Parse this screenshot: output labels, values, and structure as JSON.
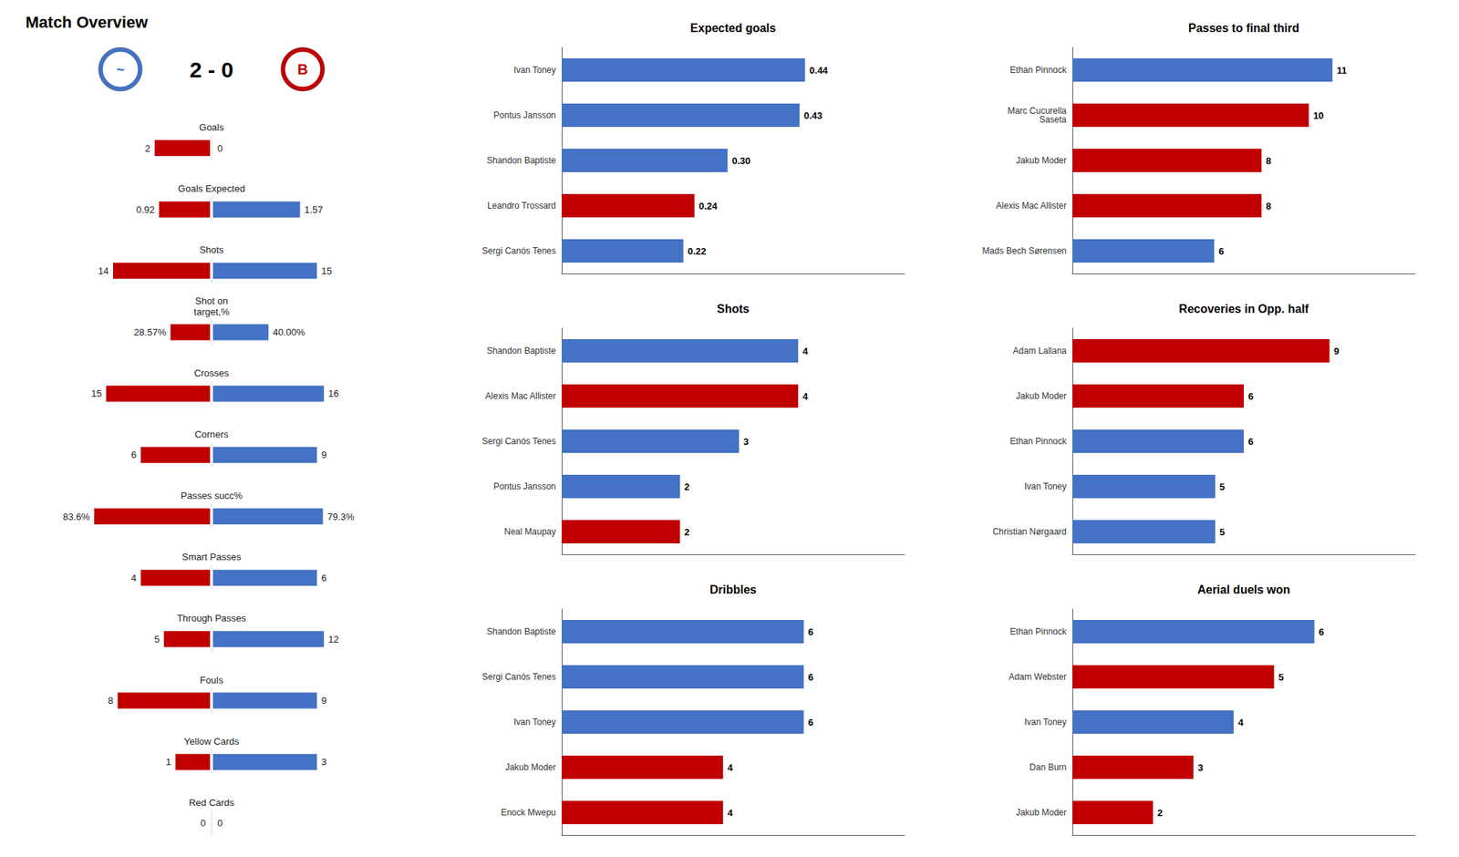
{
  "chart_data": [
    {
      "type": "bar",
      "orientation": "horizontal",
      "title": "Match Overview",
      "subtitle": "2 - 0",
      "annotations": [
        {
          "text": "~",
          "color": "#4472C4"
        },
        {
          "text": "B",
          "color": "#C00000"
        }
      ],
      "categories": [
        "Goals",
        "Goals Expected",
        "Shots",
        "Shot on\ntarget,%",
        "Crosses",
        "Corners",
        "Passes succ%",
        "Smart Passes",
        "Through Passes",
        "Fouls",
        "Yellow Cards",
        "Red Cards"
      ],
      "max_vals": [
        5,
        2.5,
        20,
        100,
        20,
        12,
        100,
        8,
        15,
        12,
        4,
        2
      ],
      "series": [
        {
          "color": "#C00000",
          "values": [
            2,
            0.92,
            14,
            28.57,
            15,
            6,
            83.6,
            4,
            5,
            8,
            1,
            0
          ],
          "value_labels": [
            "2",
            "0.92",
            "14",
            "28.57%",
            "15",
            "6",
            "83.6%",
            "4",
            "5",
            "8",
            "1",
            "0"
          ]
        },
        {
          "color": "#4472C4",
          "values": [
            0,
            1.57,
            15,
            40.0,
            16,
            9,
            79.3,
            6,
            12,
            9,
            3,
            0
          ],
          "value_labels": [
            "0",
            "1.57",
            "15",
            "40.00%",
            "16",
            "9",
            "79.3%",
            "6",
            "12",
            "9",
            "3",
            "0"
          ]
        }
      ],
      "data_labels": true,
      "grid": false,
      "tick_labels": false
    },
    {
      "type": "bar",
      "orientation": "horizontal",
      "title": "Expected goals",
      "categories": [
        "Ivan Toney",
        "Pontus Jansson",
        "Shandon Baptiste",
        "Leandro Trossard",
        "Sergi Canós Tenes"
      ],
      "values": [
        0.44,
        0.43,
        0.3,
        0.24,
        0.22
      ],
      "value_labels": [
        "0.44",
        "0.43",
        "0.30",
        "0.24",
        "0.22"
      ],
      "colors": [
        "#4472C4",
        "#4472C4",
        "#4472C4",
        "#C00000",
        "#4472C4"
      ],
      "xlim": [
        0,
        0.62
      ],
      "data_labels": true,
      "grid": false,
      "tick_labels": "y"
    },
    {
      "type": "bar",
      "orientation": "horizontal",
      "title": "Passes to final third",
      "categories": [
        "Ethan Pinnock",
        "Marc Cucurella\nSaseta",
        "Jakub Moder",
        "Alexis Mac Allister",
        "Mads Bech Sørensen"
      ],
      "values": [
        11,
        10,
        8,
        8,
        6
      ],
      "colors": [
        "#4472C4",
        "#C00000",
        "#C00000",
        "#C00000",
        "#4472C4"
      ],
      "xlim": [
        0,
        14.5
      ],
      "data_labels": true,
      "grid": false,
      "tick_labels": "y"
    },
    {
      "type": "bar",
      "orientation": "horizontal",
      "title": "Shots",
      "categories": [
        "Shandon Baptiste",
        "Alexis Mac Allister",
        "Sergi Canós Tenes",
        "Pontus Jansson",
        "Neal Maupay"
      ],
      "values": [
        4,
        4,
        3,
        2,
        2
      ],
      "colors": [
        "#4472C4",
        "#C00000",
        "#4472C4",
        "#4472C4",
        "#C00000"
      ],
      "xlim": [
        0,
        5.8
      ],
      "data_labels": true,
      "grid": false,
      "tick_labels": "y"
    },
    {
      "type": "bar",
      "orientation": "horizontal",
      "title": "Recoveries in Opp. half",
      "categories": [
        "Adam Lallana",
        "Jakub Moder",
        "Ethan Pinnock",
        "Ivan Toney",
        "Christian Nørgaard"
      ],
      "values": [
        9,
        6,
        6,
        5,
        5
      ],
      "colors": [
        "#C00000",
        "#C00000",
        "#4472C4",
        "#4472C4",
        "#4472C4"
      ],
      "xlim": [
        0,
        12.0
      ],
      "data_labels": true,
      "grid": false,
      "tick_labels": "y"
    },
    {
      "type": "bar",
      "orientation": "horizontal",
      "title": "Dribbles",
      "categories": [
        "Shandon Baptiste",
        "Sergi Canós Tenes",
        "Ivan Toney",
        "Jakub Moder",
        "Enock Mwepu"
      ],
      "values": [
        6,
        6,
        6,
        4,
        4
      ],
      "colors": [
        "#4472C4",
        "#4472C4",
        "#4472C4",
        "#C00000",
        "#C00000"
      ],
      "xlim": [
        0,
        8.5
      ],
      "data_labels": true,
      "grid": false,
      "tick_labels": "y"
    },
    {
      "type": "bar",
      "orientation": "horizontal",
      "title": "Aerial duels won",
      "categories": [
        "Ethan Pinnock",
        "Adam Webster",
        "Ivan Toney",
        "Dan Burn",
        "Jakub Moder"
      ],
      "values": [
        6,
        5,
        4,
        3,
        2
      ],
      "colors": [
        "#4472C4",
        "#C00000",
        "#4472C4",
        "#C00000",
        "#C00000"
      ],
      "xlim": [
        0,
        8.5
      ],
      "data_labels": true,
      "grid": false,
      "tick_labels": "y"
    }
  ]
}
